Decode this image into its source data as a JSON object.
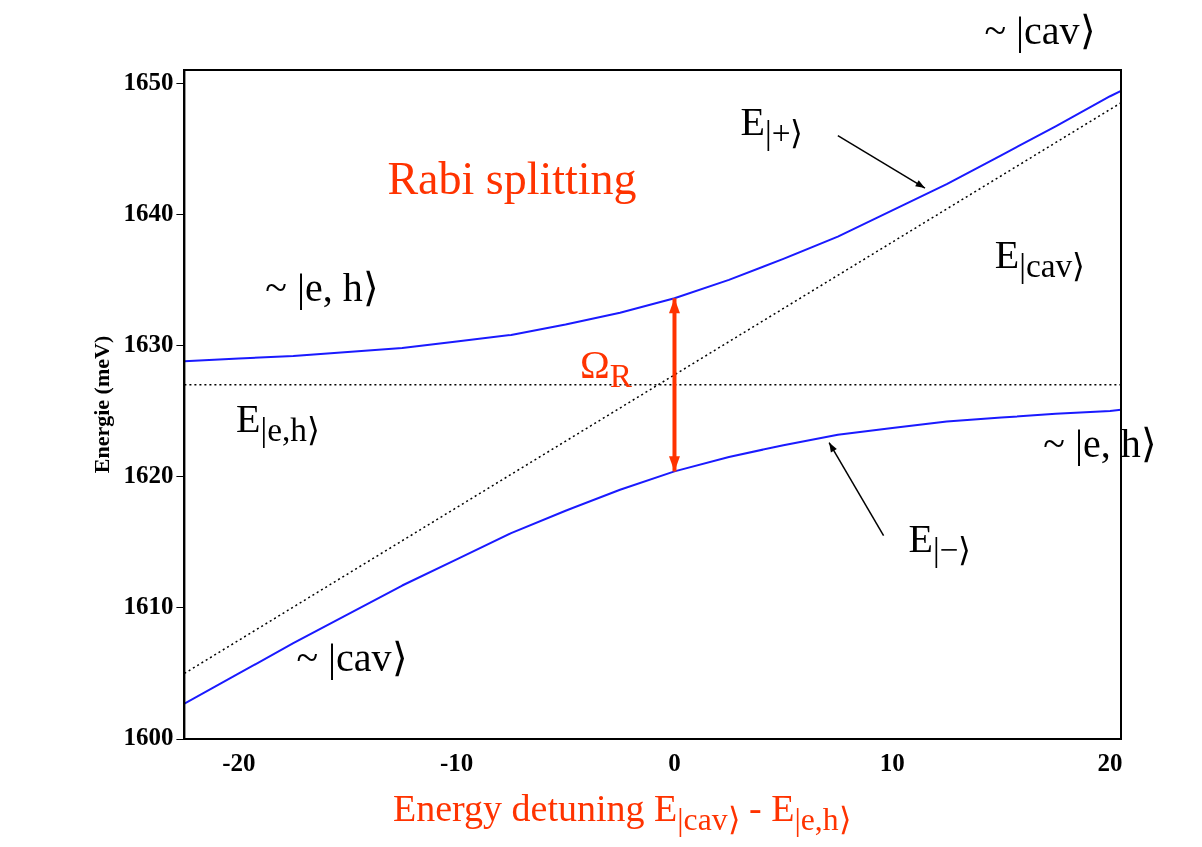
{
  "chart_data": {
    "type": "line",
    "xlabel": "Energy detuning E$_{|cav⟩}$ - E$_{|e,h⟩}$",
    "ylabel": "Energie (meV)",
    "xlim": [
      -22.5,
      20.5
    ],
    "xticks": [
      -20,
      -10,
      0,
      10,
      20
    ],
    "ylim": [
      1600,
      1651
    ],
    "yticks": [
      1600,
      1610,
      1620,
      1630,
      1640,
      1650
    ],
    "legend": false,
    "marker": "none",
    "series": [
      {
        "color": "#1a1aff",
        "line_style": "solid",
        "x": [
          -22.5,
          -20,
          -17.5,
          -15,
          -12.5,
          -10,
          -7.5,
          -5,
          -2.5,
          0,
          2.5,
          5,
          7.5,
          10,
          12.5,
          15,
          17.5,
          20,
          20.5
        ],
        "values": [
          1628.8,
          1629.0,
          1629.2,
          1629.5,
          1629.8,
          1630.3,
          1630.8,
          1631.6,
          1632.5,
          1633.6,
          1635.0,
          1636.6,
          1638.3,
          1640.3,
          1642.3,
          1644.5,
          1646.7,
          1649.0,
          1649.4
        ]
      },
      {
        "color": "#1a1aff",
        "line_style": "solid",
        "x": [
          -22.5,
          -20,
          -17.5,
          -15,
          -12.5,
          -10,
          -7.5,
          -5,
          -2.5,
          0,
          2.5,
          5,
          7.5,
          10,
          12.5,
          15,
          17.5,
          20,
          20.5
        ],
        "values": [
          1602.7,
          1605.0,
          1607.3,
          1609.5,
          1611.7,
          1613.7,
          1615.7,
          1617.4,
          1619.0,
          1620.4,
          1621.5,
          1622.4,
          1623.2,
          1623.7,
          1624.2,
          1624.5,
          1624.8,
          1625.0,
          1625.1
        ]
      },
      {
        "color": "#000000",
        "line_style": "dotted",
        "x": [
          -22.5,
          20.5
        ],
        "values": [
          1605.0,
          1648.5
        ]
      }
    ],
    "ref_lines": [
      {
        "axis": "y",
        "value": 1627,
        "color": "#000000",
        "line_style": "dotted"
      }
    ],
    "annotations": [
      "~ |cav⟩",
      "E$_{|+⟩}$",
      "Rabi splitting",
      "E$_{|cav⟩}$",
      "~ |e, h⟩",
      "Ω$_{R}$",
      "E$_{|e,h⟩}$",
      "~ |e, h⟩",
      "E$_{|−⟩}$",
      "~ |cav⟩"
    ]
  }
}
